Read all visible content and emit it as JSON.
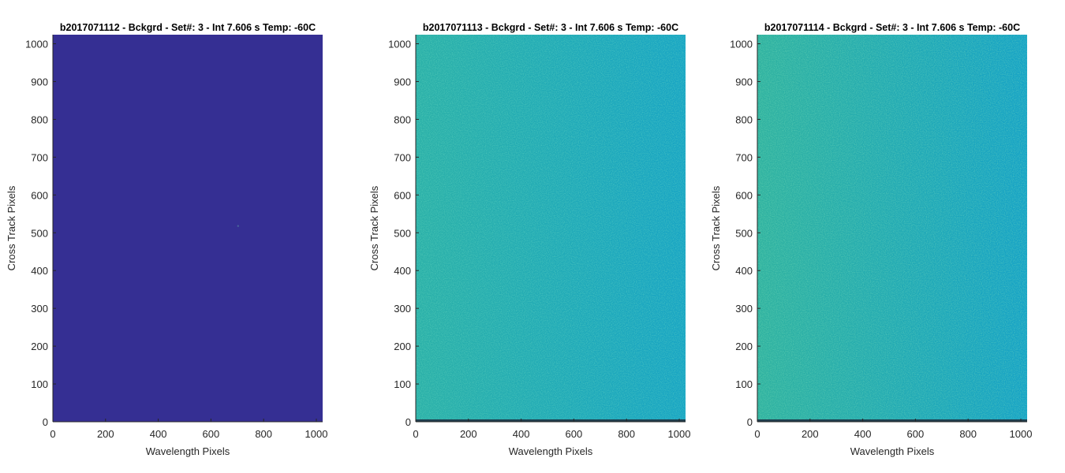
{
  "chart_data": [
    {
      "type": "heatmap",
      "title": "b2017071112 - Bckgrd - Set#: 3 - Int 7.606 s Temp: -60C",
      "xlabel": "Wavelength Pixels",
      "ylabel": "Cross Track Pixels",
      "xlim": [
        0,
        1024
      ],
      "ylim": [
        0,
        1024
      ],
      "xticks": [
        0,
        200,
        400,
        600,
        800,
        1000
      ],
      "yticks": [
        0,
        100,
        200,
        300,
        400,
        500,
        600,
        700,
        800,
        900,
        1000
      ],
      "fill": "uniform",
      "colors": {
        "base": "#352f93"
      },
      "grid": false
    },
    {
      "type": "heatmap",
      "title": "b2017071113 - Bckgrd - Set#: 3 - Int 7.606 s Temp: -60C",
      "xlabel": "Wavelength Pixels",
      "ylabel": "Cross Track Pixels",
      "xlim": [
        0,
        1024
      ],
      "ylim": [
        0,
        1024
      ],
      "xticks": [
        0,
        200,
        400,
        600,
        800,
        1000
      ],
      "yticks": [
        0,
        100,
        200,
        300,
        400,
        500,
        600,
        700,
        800,
        900,
        1000
      ],
      "fill": "noise-gradient",
      "colors": {
        "left": "#2ab0a8",
        "right": "#17a4c4",
        "bottom_row": "#1f3f4f"
      },
      "grid": false
    },
    {
      "type": "heatmap",
      "title": "b2017071114 - Bckgrd - Set#: 3 - Int 7.606 s Temp: -60C",
      "xlabel": "Wavelength Pixels",
      "ylabel": "Cross Track Pixels",
      "xlim": [
        0,
        1024
      ],
      "ylim": [
        0,
        1024
      ],
      "xticks": [
        0,
        200,
        400,
        600,
        800,
        1000
      ],
      "yticks": [
        0,
        100,
        200,
        300,
        400,
        500,
        600,
        700,
        800,
        900,
        1000
      ],
      "fill": "noise-gradient",
      "colors": {
        "left": "#2fb2a0",
        "right": "#15a2c6",
        "bottom_row": "#1f3f4f"
      },
      "grid": false
    }
  ]
}
